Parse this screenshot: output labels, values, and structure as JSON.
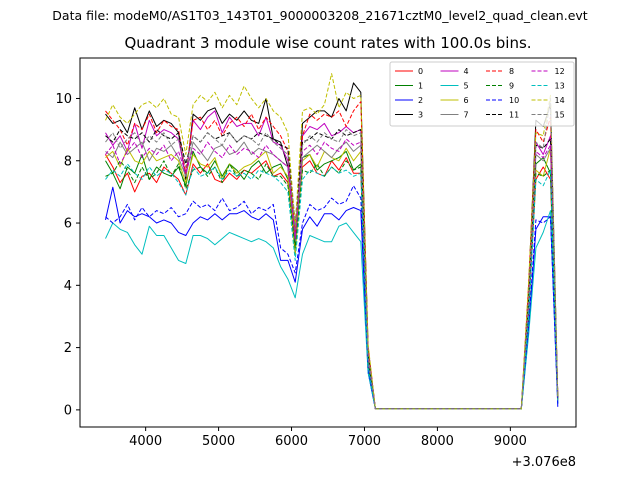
{
  "figure": {
    "suptitle": "Data file: modeM0/AS1T03_143T01_9000003208_21671cztM0_level2_quad_clean.evt",
    "title": "Quadrant 3 module wise count rates with 100.0s bins."
  },
  "chart_data": {
    "type": "line",
    "title": "Quadrant 3 module wise count rates with 100.0s bins.",
    "xlabel": "",
    "ylabel": "",
    "x_offset_label": "+3.076e8",
    "xlim": [
      3100,
      9900
    ],
    "ylim": [
      -0.55,
      11.3
    ],
    "xticks": [
      4000,
      5000,
      6000,
      7000,
      8000,
      9000
    ],
    "yticks": [
      0,
      2,
      4,
      6,
      8,
      10
    ],
    "grid": false,
    "legend": {
      "placement": "top-right",
      "ncol": 4
    },
    "x": [
      3450,
      3550,
      3650,
      3750,
      3850,
      3950,
      4050,
      4150,
      4250,
      4350,
      4450,
      4550,
      4650,
      4750,
      4850,
      4950,
      5050,
      5150,
      5250,
      5350,
      5450,
      5550,
      5650,
      5750,
      5850,
      5950,
      6050,
      6150,
      6250,
      6350,
      6450,
      6550,
      6650,
      6750,
      6850,
      6950,
      7050,
      7150,
      7250,
      7350,
      7450,
      7550,
      7650,
      7750,
      7850,
      7950,
      8050,
      8150,
      8250,
      8350,
      8450,
      8550,
      8650,
      8750,
      8850,
      8950,
      9050,
      9150,
      9250,
      9350,
      9450,
      9550,
      9650
    ],
    "series": [
      {
        "name": "0",
        "color": "#ff0000",
        "dash": "solid",
        "values": [
          8.2,
          7.8,
          7.3,
          7.6,
          7.0,
          7.5,
          7.6,
          7.3,
          7.8,
          7.6,
          7.4,
          6.9,
          7.9,
          7.6,
          7.9,
          7.4,
          7.3,
          7.6,
          7.4,
          7.7,
          7.6,
          7.8,
          8.0,
          7.5,
          7.6,
          7.3,
          5.3,
          7.8,
          8.0,
          7.6,
          7.5,
          8.0,
          7.7,
          8.1,
          7.6,
          7.6,
          1.4,
          0.03,
          0.03,
          0.03,
          0.03,
          0.03,
          0.03,
          0.03,
          0.03,
          0.03,
          0.03,
          0.03,
          0.03,
          0.03,
          0.03,
          0.03,
          0.03,
          0.03,
          0.03,
          0.03,
          0.03,
          0.03,
          3.1,
          7.4,
          7.8,
          7.4,
          0.3
        ]
      },
      {
        "name": "1",
        "color": "#008000",
        "dash": "solid",
        "values": [
          8.0,
          7.6,
          7.1,
          7.8,
          7.6,
          8.2,
          7.4,
          7.8,
          7.6,
          7.5,
          7.8,
          7.2,
          8.3,
          7.8,
          7.6,
          8.0,
          7.5,
          7.9,
          7.7,
          7.4,
          7.8,
          8.0,
          7.6,
          7.8,
          7.9,
          7.4,
          5.2,
          8.1,
          8.2,
          7.7,
          7.9,
          8.0,
          8.1,
          8.3,
          7.7,
          7.9,
          1.4,
          0.03,
          0.03,
          0.03,
          0.03,
          0.03,
          0.03,
          0.03,
          0.03,
          0.03,
          0.03,
          0.03,
          0.03,
          0.03,
          0.03,
          0.03,
          0.03,
          0.03,
          0.03,
          0.03,
          0.03,
          0.03,
          3.2,
          7.9,
          8.1,
          7.6,
          0.3
        ]
      },
      {
        "name": "2",
        "color": "#0000ff",
        "dash": "solid",
        "values": [
          6.1,
          7.15,
          6.0,
          6.4,
          6.2,
          6.3,
          6.2,
          6.0,
          6.1,
          6.0,
          5.7,
          5.6,
          6.0,
          6.2,
          6.1,
          6.3,
          6.1,
          6.3,
          6.3,
          6.4,
          6.2,
          6.1,
          6.3,
          6.1,
          4.8,
          4.8,
          4.1,
          5.8,
          6.2,
          5.9,
          6.3,
          6.3,
          6.1,
          6.4,
          6.5,
          6.4,
          1.2,
          0.03,
          0.03,
          0.03,
          0.03,
          0.03,
          0.03,
          0.03,
          0.03,
          0.03,
          0.03,
          0.03,
          0.03,
          0.03,
          0.03,
          0.03,
          0.03,
          0.03,
          0.03,
          0.03,
          0.03,
          0.03,
          2.5,
          5.8,
          6.2,
          6.2,
          0.1
        ]
      },
      {
        "name": "3",
        "color": "#000000",
        "dash": "solid",
        "values": [
          9.5,
          9.2,
          9.3,
          8.9,
          9.7,
          9.0,
          9.6,
          9.1,
          9.3,
          9.2,
          8.9,
          7.4,
          9.5,
          9.3,
          9.6,
          9.7,
          9.2,
          9.5,
          9.3,
          9.6,
          9.3,
          9.2,
          10.0,
          8.7,
          8.6,
          7.8,
          5.0,
          9.2,
          9.4,
          9.6,
          9.6,
          9.4,
          10.0,
          9.6,
          10.5,
          10.2,
          2.0,
          0.03,
          0.03,
          0.03,
          0.03,
          0.03,
          0.03,
          0.03,
          0.03,
          0.03,
          0.03,
          0.03,
          0.03,
          0.03,
          0.03,
          0.03,
          0.03,
          0.03,
          0.03,
          0.03,
          0.03,
          0.03,
          3.9,
          9.3,
          9.1,
          9.8,
          0.4
        ]
      },
      {
        "name": "4",
        "color": "#bf00bf",
        "dash": "solid",
        "values": [
          8.9,
          8.5,
          8.8,
          8.3,
          9.2,
          8.4,
          9.3,
          8.8,
          9.0,
          8.9,
          8.7,
          7.5,
          9.3,
          9.0,
          9.4,
          9.6,
          8.9,
          9.4,
          9.1,
          9.2,
          9.2,
          8.8,
          9.4,
          8.6,
          8.5,
          8.0,
          5.6,
          8.8,
          9.1,
          9.0,
          9.2,
          8.8,
          8.9,
          9.1,
          8.9,
          9.0,
          1.9,
          0.03,
          0.03,
          0.03,
          0.03,
          0.03,
          0.03,
          0.03,
          0.03,
          0.03,
          0.03,
          0.03,
          0.03,
          0.03,
          0.03,
          0.03,
          0.03,
          0.03,
          0.03,
          0.03,
          0.03,
          0.03,
          3.4,
          8.6,
          8.2,
          8.8,
          0.4
        ]
      },
      {
        "name": "5",
        "color": "#00bfbf",
        "dash": "solid",
        "values": [
          5.5,
          6.0,
          5.8,
          5.7,
          5.3,
          5.0,
          5.9,
          5.6,
          5.6,
          5.2,
          4.8,
          4.7,
          5.6,
          5.6,
          5.5,
          5.3,
          5.5,
          5.7,
          5.6,
          5.5,
          5.4,
          5.5,
          5.4,
          5.2,
          4.6,
          4.2,
          3.6,
          5.0,
          5.6,
          5.5,
          5.4,
          5.4,
          5.9,
          6.0,
          5.7,
          5.4,
          1.2,
          0.03,
          0.03,
          0.03,
          0.03,
          0.03,
          0.03,
          0.03,
          0.03,
          0.03,
          0.03,
          0.03,
          0.03,
          0.03,
          0.03,
          0.03,
          0.03,
          0.03,
          0.03,
          0.03,
          0.03,
          0.03,
          2.4,
          5.2,
          5.7,
          6.4,
          0.2
        ]
      },
      {
        "name": "6",
        "color": "#bfbf00",
        "dash": "solid",
        "values": [
          8.1,
          8.3,
          7.8,
          8.4,
          8.0,
          7.9,
          8.3,
          8.0,
          8.1,
          8.2,
          8.0,
          7.3,
          8.2,
          7.9,
          7.8,
          8.1,
          7.4,
          7.9,
          7.6,
          7.8,
          7.9,
          8.1,
          8.3,
          7.6,
          7.8,
          7.5,
          5.0,
          8.0,
          8.2,
          7.8,
          8.3,
          8.1,
          8.0,
          8.4,
          8.0,
          8.3,
          1.6,
          0.03,
          0.03,
          0.03,
          0.03,
          0.03,
          0.03,
          0.03,
          0.03,
          0.03,
          0.03,
          0.03,
          0.03,
          0.03,
          0.03,
          0.03,
          0.03,
          0.03,
          0.03,
          0.03,
          0.03,
          0.03,
          3.3,
          7.7,
          7.5,
          8.4,
          0.3
        ]
      },
      {
        "name": "7",
        "color": "#808080",
        "dash": "solid",
        "values": [
          8.3,
          8.1,
          8.6,
          8.2,
          8.4,
          8.6,
          8.0,
          8.4,
          8.3,
          8.5,
          8.1,
          7.5,
          8.6,
          8.3,
          8.0,
          8.4,
          8.5,
          8.2,
          8.3,
          8.6,
          8.2,
          8.4,
          8.3,
          8.2,
          8.0,
          7.8,
          5.4,
          8.1,
          8.3,
          8.5,
          8.3,
          8.1,
          8.4,
          8.6,
          8.3,
          8.5,
          1.7,
          0.03,
          0.03,
          0.03,
          0.03,
          0.03,
          0.03,
          0.03,
          0.03,
          0.03,
          0.03,
          0.03,
          0.03,
          0.03,
          0.03,
          0.03,
          0.03,
          0.03,
          0.03,
          0.03,
          0.03,
          0.03,
          3.5,
          8.2,
          8.0,
          8.4,
          0.3
        ]
      },
      {
        "name": "8",
        "color": "#ff0000",
        "dash": "dashed",
        "values": [
          9.6,
          9.3,
          9.0,
          8.5,
          9.2,
          9.0,
          9.5,
          8.9,
          9.3,
          9.1,
          9.0,
          7.6,
          9.3,
          9.4,
          9.0,
          9.3,
          8.8,
          9.2,
          9.4,
          9.1,
          9.5,
          9.0,
          9.4,
          9.1,
          8.8,
          8.3,
          5.7,
          8.8,
          9.5,
          9.3,
          9.5,
          9.4,
          9.6,
          9.1,
          9.6,
          9.9,
          2.0,
          0.03,
          0.03,
          0.03,
          0.03,
          0.03,
          0.03,
          0.03,
          0.03,
          0.03,
          0.03,
          0.03,
          0.03,
          0.03,
          0.03,
          0.03,
          0.03,
          0.03,
          0.03,
          0.03,
          0.03,
          0.03,
          4.0,
          9.0,
          8.6,
          9.4,
          0.4
        ]
      },
      {
        "name": "9",
        "color": "#008000",
        "dash": "dashed",
        "values": [
          7.5,
          7.6,
          8.0,
          7.7,
          7.3,
          7.8,
          7.4,
          7.6,
          8.0,
          7.5,
          7.9,
          7.1,
          7.7,
          7.8,
          7.5,
          7.8,
          7.3,
          7.9,
          7.5,
          7.7,
          7.6,
          7.4,
          7.9,
          7.5,
          7.5,
          7.2,
          5.2,
          7.7,
          7.6,
          7.9,
          7.5,
          7.8,
          7.6,
          8.0,
          7.7,
          7.8,
          1.5,
          0.03,
          0.03,
          0.03,
          0.03,
          0.03,
          0.03,
          0.03,
          0.03,
          0.03,
          0.03,
          0.03,
          0.03,
          0.03,
          0.03,
          0.03,
          0.03,
          0.03,
          0.03,
          0.03,
          0.03,
          0.03,
          3.0,
          7.6,
          7.5,
          7.7,
          0.3
        ]
      },
      {
        "name": "10",
        "color": "#0000ff",
        "dash": "dashed",
        "values": [
          6.2,
          6.0,
          6.2,
          6.6,
          6.1,
          6.5,
          6.2,
          6.4,
          6.3,
          6.5,
          6.2,
          6.3,
          6.7,
          6.5,
          6.6,
          6.4,
          6.8,
          6.4,
          6.5,
          6.7,
          6.3,
          6.5,
          6.4,
          6.6,
          5.2,
          5.0,
          4.4,
          6.0,
          6.6,
          6.4,
          6.5,
          6.8,
          6.6,
          6.7,
          7.2,
          6.8,
          1.3,
          0.03,
          0.03,
          0.03,
          0.03,
          0.03,
          0.03,
          0.03,
          0.03,
          0.03,
          0.03,
          0.03,
          0.03,
          0.03,
          0.03,
          0.03,
          0.03,
          0.03,
          0.03,
          0.03,
          0.03,
          0.03,
          2.7,
          6.1,
          6.0,
          6.2,
          0.2
        ]
      },
      {
        "name": "11",
        "color": "#000000",
        "dash": "dashed",
        "values": [
          8.8,
          8.6,
          9.0,
          8.8,
          8.7,
          8.9,
          8.6,
          9.0,
          8.8,
          8.7,
          8.9,
          7.9,
          8.8,
          8.6,
          8.9,
          8.7,
          8.8,
          8.9,
          8.6,
          8.8,
          8.7,
          8.9,
          8.8,
          8.7,
          8.5,
          8.4,
          6.0,
          8.6,
          8.7,
          8.9,
          8.8,
          8.7,
          9.0,
          8.8,
          8.9,
          9.0,
          1.8,
          0.03,
          0.03,
          0.03,
          0.03,
          0.03,
          0.03,
          0.03,
          0.03,
          0.03,
          0.03,
          0.03,
          0.03,
          0.03,
          0.03,
          0.03,
          0.03,
          0.03,
          0.03,
          0.03,
          0.03,
          0.03,
          3.6,
          8.5,
          8.4,
          8.7,
          0.4
        ]
      },
      {
        "name": "12",
        "color": "#bf00bf",
        "dash": "dashed",
        "values": [
          8.2,
          8.5,
          7.9,
          8.3,
          8.6,
          8.1,
          8.4,
          8.2,
          8.5,
          8.0,
          8.3,
          7.6,
          8.4,
          8.2,
          8.6,
          8.3,
          8.1,
          8.5,
          8.2,
          8.4,
          8.3,
          8.1,
          8.5,
          8.2,
          8.0,
          7.8,
          5.5,
          8.3,
          8.5,
          8.2,
          8.6,
          8.4,
          8.3,
          8.7,
          8.5,
          8.6,
          1.7,
          0.03,
          0.03,
          0.03,
          0.03,
          0.03,
          0.03,
          0.03,
          0.03,
          0.03,
          0.03,
          0.03,
          0.03,
          0.03,
          0.03,
          0.03,
          0.03,
          0.03,
          0.03,
          0.03,
          0.03,
          0.03,
          3.4,
          8.3,
          8.1,
          8.5,
          0.3
        ]
      },
      {
        "name": "13",
        "color": "#00bfbf",
        "dash": "dashed",
        "values": [
          7.4,
          7.7,
          7.5,
          7.9,
          7.6,
          7.4,
          7.8,
          7.5,
          7.7,
          7.6,
          7.3,
          6.9,
          7.8,
          7.5,
          7.6,
          7.8,
          7.4,
          7.7,
          7.5,
          7.6,
          7.4,
          7.7,
          7.6,
          7.5,
          7.3,
          7.0,
          4.8,
          7.4,
          7.7,
          7.6,
          7.5,
          7.8,
          7.6,
          7.7,
          7.5,
          7.6,
          1.4,
          0.03,
          0.03,
          0.03,
          0.03,
          0.03,
          0.03,
          0.03,
          0.03,
          0.03,
          0.03,
          0.03,
          0.03,
          0.03,
          0.03,
          0.03,
          0.03,
          0.03,
          0.03,
          0.03,
          0.03,
          0.03,
          3.0,
          7.4,
          7.2,
          7.7,
          0.3
        ]
      },
      {
        "name": "14",
        "color": "#bfbf00",
        "dash": "dashed",
        "values": [
          9.3,
          9.8,
          9.4,
          9.2,
          9.5,
          9.8,
          9.9,
          9.7,
          10.0,
          9.5,
          9.4,
          8.2,
          9.8,
          10.1,
          9.9,
          10.2,
          9.7,
          10.1,
          9.8,
          10.4,
          10.0,
          9.7,
          10.0,
          9.6,
          9.4,
          8.9,
          5.9,
          9.6,
          9.7,
          9.5,
          9.8,
          10.8,
          9.7,
          10.2,
          10.0,
          10.1,
          2.1,
          0.03,
          0.03,
          0.03,
          0.03,
          0.03,
          0.03,
          0.03,
          0.03,
          0.03,
          0.03,
          0.03,
          0.03,
          0.03,
          0.03,
          0.03,
          0.03,
          0.03,
          0.03,
          0.03,
          0.03,
          0.03,
          4.1,
          8.9,
          8.8,
          10.1,
          0.4
        ]
      },
      {
        "name": "15",
        "color": "#808080",
        "dash": "dashed",
        "values": [
          8.6,
          8.9,
          8.4,
          8.7,
          8.9,
          8.5,
          8.8,
          8.6,
          8.9,
          8.5,
          8.7,
          7.8,
          8.8,
          8.6,
          8.9,
          8.7,
          8.5,
          8.9,
          8.6,
          8.8,
          8.7,
          8.5,
          8.9,
          8.6,
          8.4,
          8.2,
          5.8,
          8.5,
          8.8,
          8.6,
          8.9,
          8.7,
          8.6,
          9.0,
          8.8,
          8.9,
          1.8,
          0.03,
          0.03,
          0.03,
          0.03,
          0.03,
          0.03,
          0.03,
          0.03,
          0.03,
          0.03,
          0.03,
          0.03,
          0.03,
          0.03,
          0.03,
          0.03,
          0.03,
          0.03,
          0.03,
          0.03,
          0.03,
          3.6,
          8.6,
          8.4,
          10.0,
          0.4
        ]
      }
    ]
  }
}
